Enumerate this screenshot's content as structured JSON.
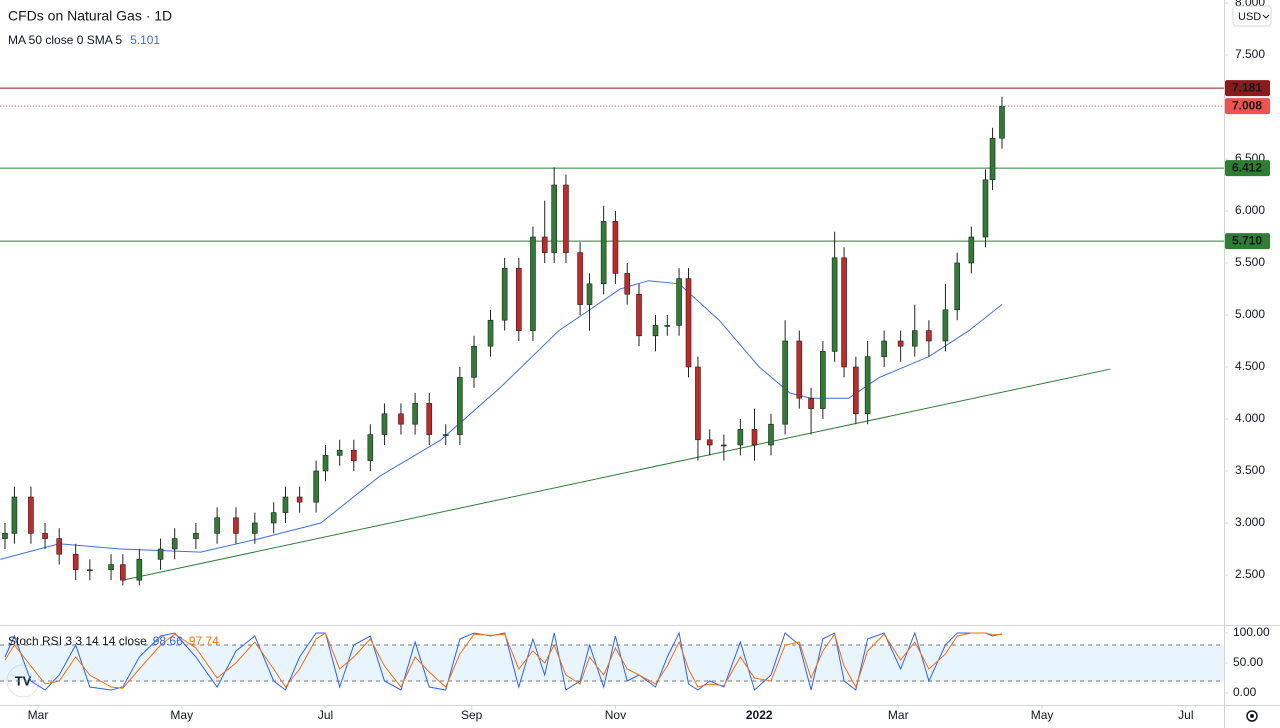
{
  "chart_data": [
    {
      "type": "candlestick",
      "title": "CFDs on Natural Gas · 1D",
      "currency": "USD",
      "x": [
        -14,
        -10,
        -3,
        3,
        9,
        16,
        22,
        31,
        36,
        43,
        52,
        58,
        67,
        76,
        84,
        92,
        100,
        105,
        111,
        118,
        122,
        128,
        134,
        141,
        147,
        154,
        160,
        166,
        173,
        179,
        185,
        192,
        198,
        204,
        210,
        215,
        219,
        224,
        230,
        234,
        240,
        245,
        250,
        255,
        262,
        267,
        272,
        276,
        280,
        285,
        291,
        298,
        304,
        311,
        317,
        323,
        328,
        333,
        338,
        342,
        347,
        352,
        359,
        366,
        372,
        378,
        385,
        390,
        396,
        402,
        405,
        409
      ],
      "open": [
        2.85,
        2.9,
        3.25,
        2.9,
        2.85,
        2.7,
        2.55,
        2.55,
        2.6,
        2.45,
        2.65,
        2.75,
        2.85,
        2.9,
        3.05,
        2.9,
        3.0,
        3.1,
        3.25,
        3.2,
        3.5,
        3.65,
        3.7,
        3.6,
        3.85,
        4.05,
        3.95,
        4.15,
        3.85,
        3.85,
        4.4,
        4.7,
        4.95,
        5.45,
        4.85,
        5.75,
        5.6,
        6.25,
        5.6,
        5.1,
        5.3,
        5.9,
        5.4,
        5.2,
        4.8,
        4.9,
        4.9,
        5.35,
        4.5,
        3.8,
        3.75,
        3.75,
        3.9,
        3.75,
        3.95,
        4.75,
        4.2,
        4.1,
        4.65,
        5.55,
        4.5,
        4.05,
        4.6,
        4.75,
        4.7,
        4.85,
        4.75,
        5.05,
        5.5,
        5.75,
        6.3,
        6.7
      ],
      "high": [
        3.0,
        3.35,
        3.35,
        3.0,
        2.95,
        2.8,
        2.65,
        2.7,
        2.7,
        2.75,
        2.85,
        2.95,
        3.0,
        3.15,
        3.15,
        3.1,
        3.2,
        3.35,
        3.35,
        3.6,
        3.75,
        3.8,
        3.8,
        3.95,
        4.15,
        4.15,
        4.25,
        4.25,
        3.95,
        4.5,
        4.8,
        5.05,
        5.55,
        5.55,
        5.85,
        6.1,
        6.42,
        6.35,
        5.7,
        5.4,
        6.05,
        6.0,
        5.5,
        5.3,
        5.0,
        5.0,
        5.45,
        5.45,
        4.6,
        3.9,
        3.85,
        4.0,
        4.1,
        4.05,
        4.95,
        4.85,
        4.3,
        4.75,
        5.8,
        5.65,
        4.6,
        4.75,
        4.85,
        4.85,
        5.1,
        4.95,
        5.3,
        5.6,
        5.85,
        6.4,
        6.8,
        7.1
      ],
      "low": [
        2.75,
        2.8,
        2.8,
        2.75,
        2.6,
        2.45,
        2.45,
        2.45,
        2.4,
        2.4,
        2.55,
        2.65,
        2.75,
        2.8,
        2.8,
        2.8,
        2.9,
        3.0,
        3.1,
        3.1,
        3.4,
        3.55,
        3.5,
        3.5,
        3.75,
        3.85,
        3.85,
        3.75,
        3.75,
        3.75,
        4.3,
        4.6,
        4.85,
        4.75,
        4.75,
        5.5,
        5.5,
        5.5,
        5.0,
        4.85,
        5.2,
        5.3,
        5.1,
        4.7,
        4.65,
        4.8,
        4.8,
        4.4,
        3.6,
        3.65,
        3.6,
        3.65,
        3.6,
        3.65,
        3.85,
        4.1,
        3.85,
        4.0,
        4.55,
        4.4,
        3.95,
        3.95,
        4.5,
        4.55,
        4.6,
        4.6,
        4.65,
        4.95,
        5.4,
        5.65,
        6.2,
        6.6
      ],
      "close": [
        2.9,
        3.25,
        2.9,
        2.85,
        2.7,
        2.55,
        2.55,
        2.6,
        2.45,
        2.65,
        2.75,
        2.85,
        2.9,
        3.05,
        2.9,
        3.0,
        3.1,
        3.25,
        3.2,
        3.5,
        3.65,
        3.7,
        3.6,
        3.85,
        4.05,
        3.95,
        4.15,
        3.85,
        3.85,
        4.4,
        4.7,
        4.95,
        5.45,
        4.85,
        5.75,
        5.6,
        6.25,
        5.6,
        5.1,
        5.3,
        5.9,
        5.4,
        5.2,
        4.8,
        4.9,
        4.9,
        5.35,
        4.5,
        3.8,
        3.75,
        3.75,
        3.9,
        3.75,
        3.95,
        4.75,
        4.2,
        4.1,
        4.65,
        5.55,
        4.5,
        4.05,
        4.6,
        4.75,
        4.7,
        4.85,
        4.75,
        5.05,
        5.5,
        5.75,
        6.3,
        6.7,
        7.008
      ],
      "up_color": "#2e7d32",
      "down_color": "#c62828",
      "last_color": "#ef5350",
      "ma": {
        "label": "MA 50 close 0 SMA 5",
        "color": "#3d6ee8",
        "x": [
          -16,
          9,
          35,
          69,
          94,
          120,
          145,
          171,
          196,
          221,
          247,
          259,
          272,
          289,
          306,
          319,
          328,
          344,
          357,
          378,
          395,
          409
        ],
        "values": [
          2.65,
          2.8,
          2.75,
          2.72,
          2.85,
          3.0,
          3.45,
          3.8,
          4.3,
          4.85,
          5.25,
          5.33,
          5.3,
          4.95,
          4.5,
          4.25,
          4.2,
          4.2,
          4.4,
          4.6,
          4.85,
          5.101
        ]
      },
      "hlines": [
        {
          "value": 7.181,
          "label": "7.181",
          "color": "#8b1a1a"
        },
        {
          "value": 6.412,
          "label": "6.412",
          "color": "#2e7d32"
        },
        {
          "value": 5.71,
          "label": "5.710",
          "color": "#2e7d32"
        }
      ],
      "trendline": {
        "x": [
          36,
          455
        ],
        "values": [
          2.45,
          4.48
        ],
        "color": "#2e7d32"
      },
      "xlim": [
        -16.12,
        503.2
      ],
      "ylim": [
        2.019,
        8.029
      ],
      "xticks": [
        {
          "value": 0,
          "label": "Mar"
        },
        {
          "value": 61,
          "label": "May"
        },
        {
          "value": 122,
          "label": "Jul"
        },
        {
          "value": 184,
          "label": "Sep"
        },
        {
          "value": 245,
          "label": "Nov"
        },
        {
          "value": 306,
          "label": "2022"
        },
        {
          "value": 365,
          "label": "Mar"
        },
        {
          "value": 426,
          "label": "May"
        },
        {
          "value": 487,
          "label": "Jul"
        }
      ],
      "yticks": [
        {
          "value": 8,
          "label": "8.000"
        },
        {
          "value": 7.5,
          "label": "7.500"
        },
        {
          "value": 6.5,
          "label": "6.500"
        },
        {
          "value": 6,
          "label": "6.000"
        },
        {
          "value": 5.5,
          "label": "5.500"
        },
        {
          "value": 5,
          "label": "5.000"
        },
        {
          "value": 4.5,
          "label": "4.500"
        },
        {
          "value": 4,
          "label": "4.000"
        },
        {
          "value": 3.5,
          "label": "3.500"
        },
        {
          "value": 3,
          "label": "3.000"
        },
        {
          "value": 2.5,
          "label": "2.500"
        }
      ]
    },
    {
      "type": "line",
      "title": "Stoch RSI 3 3 14 14 close",
      "x": [
        -14,
        -10,
        -3,
        3,
        9,
        16,
        22,
        31,
        36,
        43,
        52,
        58,
        67,
        76,
        84,
        92,
        100,
        105,
        111,
        118,
        122,
        128,
        134,
        141,
        147,
        154,
        160,
        166,
        173,
        179,
        185,
        192,
        198,
        204,
        210,
        215,
        219,
        224,
        230,
        234,
        240,
        245,
        250,
        255,
        262,
        267,
        272,
        276,
        280,
        285,
        291,
        298,
        304,
        311,
        317,
        323,
        328,
        333,
        338,
        342,
        347,
        352,
        359,
        366,
        372,
        378,
        385,
        390,
        396,
        402,
        405,
        409
      ],
      "series": [
        {
          "color": "#2962ff",
          "values": [
            60,
            95,
            20,
            5,
            30,
            80,
            10,
            5,
            10,
            60,
            95,
            100,
            60,
            10,
            70,
            95,
            20,
            5,
            60,
            100,
            100,
            10,
            80,
            95,
            20,
            5,
            85,
            10,
            5,
            90,
            100,
            95,
            100,
            10,
            90,
            30,
            100,
            5,
            20,
            80,
            10,
            95,
            20,
            30,
            10,
            60,
            100,
            15,
            5,
            20,
            10,
            85,
            5,
            30,
            100,
            80,
            5,
            90,
            100,
            20,
            5,
            90,
            100,
            40,
            100,
            20,
            80,
            100,
            100,
            100,
            95,
            98.66
          ]
        },
        {
          "color": "#ff6d00",
          "values": [
            55,
            80,
            45,
            15,
            20,
            60,
            30,
            10,
            8,
            40,
            80,
            98,
            75,
            25,
            50,
            85,
            40,
            10,
            40,
            90,
            100,
            40,
            60,
            90,
            45,
            10,
            60,
            35,
            10,
            65,
            98,
            96,
            98,
            40,
            70,
            50,
            80,
            30,
            15,
            60,
            30,
            75,
            40,
            30,
            15,
            45,
            85,
            40,
            10,
            15,
            12,
            60,
            25,
            20,
            80,
            85,
            25,
            70,
            98,
            45,
            10,
            70,
            98,
            55,
            85,
            40,
            65,
            95,
            100,
            100,
            97,
            97.74
          ]
        }
      ],
      "bands": [
        20,
        80
      ],
      "band_color": "#2196f3",
      "xlim": [
        -16.12,
        503.2
      ],
      "ylim": [
        -20,
        111.7
      ],
      "yticks": [
        {
          "value": 100,
          "label": "100.00"
        },
        {
          "value": 50,
          "label": "50.00"
        },
        {
          "value": 0,
          "label": "0.00"
        }
      ]
    }
  ]
}
